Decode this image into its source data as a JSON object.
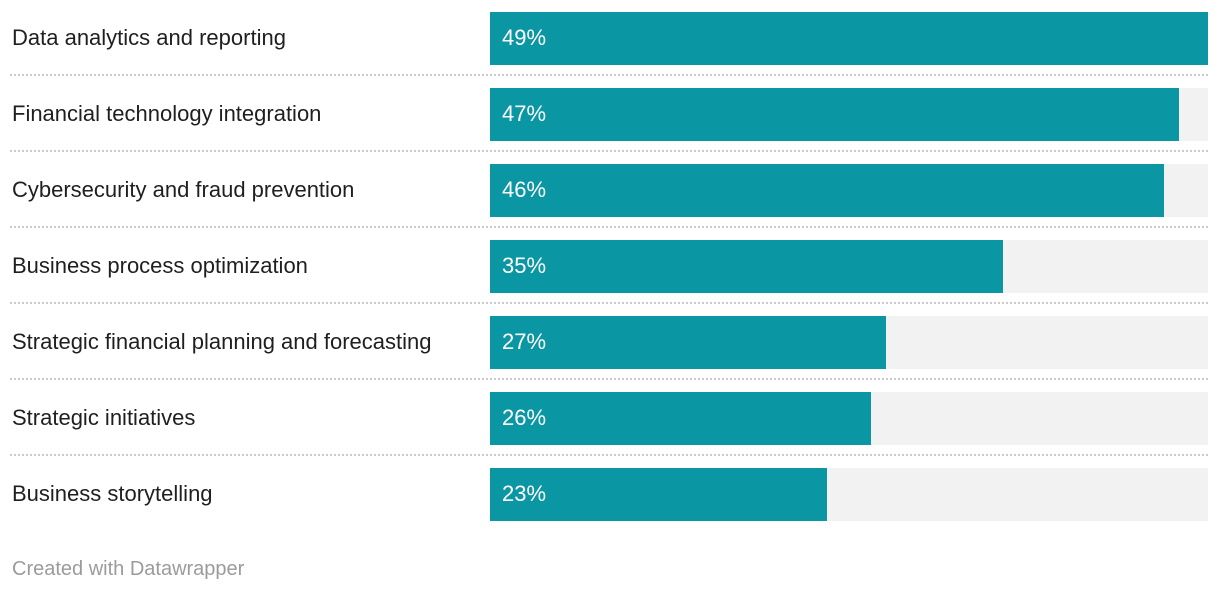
{
  "chart_data": {
    "type": "bar",
    "orientation": "horizontal",
    "categories": [
      "Data analytics and reporting",
      "Financial technology integration",
      "Cybersecurity and fraud prevention",
      "Business process optimization",
      "Strategic financial planning and forecasting",
      "Strategic initiatives",
      "Business storytelling"
    ],
    "values": [
      49,
      47,
      46,
      35,
      27,
      26,
      23
    ],
    "value_labels": [
      "49%",
      "47%",
      "46%",
      "35%",
      "27%",
      "26%",
      "23%"
    ],
    "unit": "%",
    "scale_max": 49,
    "grid": false,
    "legend": false,
    "colors": {
      "bar": "#0a96a2",
      "track": "#f2f2f2",
      "category_label": "#1f1f1f",
      "value_label": "#ffffff",
      "separator": "#cccccc",
      "footer_text": "#9b9b9b",
      "background": "#ffffff"
    }
  },
  "footer": {
    "credit": "Created with Datawrapper"
  }
}
